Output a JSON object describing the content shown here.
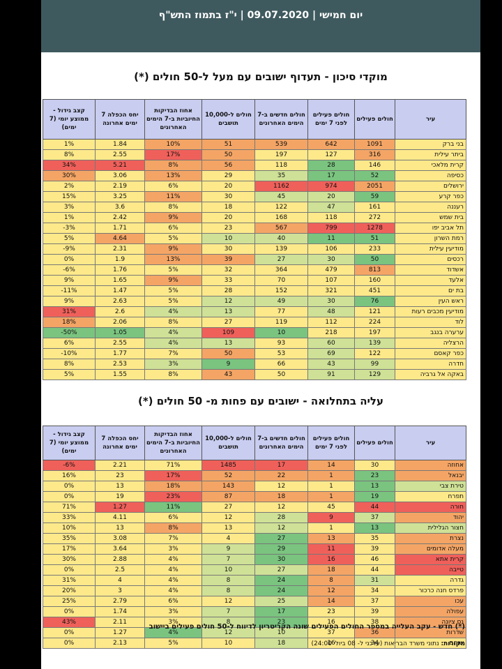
{
  "header": {
    "title": "יום חמישי | 09.07.2020 | י\"ז בתמוז התש\"ף"
  },
  "colors": {
    "header_bg": "#3f5a5f",
    "table_header_bg": "#c9cdf0",
    "scale": {
      "red": "#f0605a",
      "orange": "#f4a565",
      "yellow": "#fde98a",
      "lightgreen": "#cfe196",
      "green": "#7ac47f"
    }
  },
  "table1": {
    "title": "מוקדי סיכון -  תעדוף ישובים עם מעל ל-50 חולים (*)",
    "columns": [
      "עיר",
      "חולים פעילים",
      "חולים פעילים לפני 7 ימים",
      "חולים חדשים ב-7 הימים האחרונים",
      "חולים ל-10,000 תושבים",
      "אחוז הבדיקות החיוביות ב-7 הימים האחרונים",
      "יחס הכפלה 7 ימים אחרונה",
      "קצב גידול - ממוצע יומי (7 ימים)"
    ],
    "rows": [
      {
        "cells": [
          "בני ברק",
          "1091",
          "642",
          "539",
          "51",
          "10%",
          "1.84",
          "1%"
        ],
        "colors": [
          "#fde98a",
          "#f4a565",
          "#f4a565",
          "#f4a565",
          "#f4a565",
          "#f4a565",
          "#fde98a",
          "#fde98a"
        ]
      },
      {
        "cells": [
          "ביתר עילית",
          "316",
          "127",
          "197",
          "50",
          "17%",
          "2.55",
          "8%"
        ],
        "colors": [
          "#fde98a",
          "#f4a565",
          "#fde98a",
          "#fde98a",
          "#f4a565",
          "#f0605a",
          "#fde98a",
          "#fde98a"
        ]
      },
      {
        "cells": [
          "קרית מלאכי",
          "146",
          "28",
          "118",
          "56",
          "8%",
          "5.21",
          "34%"
        ],
        "colors": [
          "#fde98a",
          "#fde98a",
          "#7ac47f",
          "#fde98a",
          "#f4a565",
          "#f4a565",
          "#f0605a",
          "#f0605a"
        ]
      },
      {
        "cells": [
          "כסיפה",
          "52",
          "17",
          "35",
          "29",
          "13%",
          "3.06",
          "30%"
        ],
        "colors": [
          "#fde98a",
          "#7ac47f",
          "#7ac47f",
          "#cfe196",
          "#fde98a",
          "#f4a565",
          "#fde98a",
          "#f4a565"
        ]
      },
      {
        "cells": [
          "ירושלים",
          "2051",
          "974",
          "1162",
          "20",
          "6%",
          "2.19",
          "2%"
        ],
        "colors": [
          "#fde98a",
          "#f4a565",
          "#f0605a",
          "#f0605a",
          "#fde98a",
          "#fde98a",
          "#fde98a",
          "#fde98a"
        ]
      },
      {
        "cells": [
          "כפר קרע",
          "59",
          "20",
          "45",
          "30",
          "11%",
          "3.25",
          "15%"
        ],
        "colors": [
          "#fde98a",
          "#7ac47f",
          "#cfe196",
          "#cfe196",
          "#fde98a",
          "#f4a565",
          "#fde98a",
          "#fde98a"
        ]
      },
      {
        "cells": [
          "רעננה",
          "161",
          "47",
          "122",
          "18",
          "8%",
          "3.6",
          "3%"
        ],
        "colors": [
          "#fde98a",
          "#fde98a",
          "#cfe196",
          "#fde98a",
          "#fde98a",
          "#fde98a",
          "#fde98a",
          "#fde98a"
        ]
      },
      {
        "cells": [
          "בית שמש",
          "272",
          "118",
          "168",
          "20",
          "9%",
          "2.42",
          "1%"
        ],
        "colors": [
          "#fde98a",
          "#fde98a",
          "#fde98a",
          "#fde98a",
          "#fde98a",
          "#f4a565",
          "#fde98a",
          "#fde98a"
        ]
      },
      {
        "cells": [
          "תל אביב יפו",
          "1278",
          "799",
          "567",
          "23",
          "6%",
          "1.71",
          "-3%"
        ],
        "colors": [
          "#fde98a",
          "#f0605a",
          "#f0605a",
          "#f4a565",
          "#fde98a",
          "#fde98a",
          "#fde98a",
          "#fde98a"
        ]
      },
      {
        "cells": [
          "רמת השרון",
          "51",
          "11",
          "40",
          "10",
          "5%",
          "4.64",
          "5%"
        ],
        "colors": [
          "#fde98a",
          "#7ac47f",
          "#7ac47f",
          "#cfe196",
          "#cfe196",
          "#fde98a",
          "#f4a565",
          "#fde98a"
        ]
      },
      {
        "cells": [
          "מודיעין עילית",
          "233",
          "106",
          "139",
          "30",
          "9%",
          "2.31",
          "-9%"
        ],
        "colors": [
          "#fde98a",
          "#fde98a",
          "#fde98a",
          "#fde98a",
          "#fde98a",
          "#f4a565",
          "#fde98a",
          "#fde98a"
        ]
      },
      {
        "cells": [
          "רכסים",
          "50",
          "30",
          "27",
          "39",
          "13%",
          "1.9",
          "0%"
        ],
        "colors": [
          "#fde98a",
          "#7ac47f",
          "#cfe196",
          "#cfe196",
          "#f4a565",
          "#f4a565",
          "#fde98a",
          "#fde98a"
        ]
      },
      {
        "cells": [
          "אשדוד",
          "813",
          "479",
          "364",
          "32",
          "5%",
          "1.76",
          "-6%"
        ],
        "colors": [
          "#fde98a",
          "#f4a565",
          "#fde98a",
          "#fde98a",
          "#fde98a",
          "#fde98a",
          "#fde98a",
          "#fde98a"
        ]
      },
      {
        "cells": [
          "אלעד",
          "160",
          "107",
          "70",
          "33",
          "9%",
          "1.65",
          "9%"
        ],
        "colors": [
          "#fde98a",
          "#fde98a",
          "#fde98a",
          "#fde98a",
          "#fde98a",
          "#f4a565",
          "#fde98a",
          "#fde98a"
        ]
      },
      {
        "cells": [
          "בת ים",
          "451",
          "321",
          "152",
          "28",
          "5%",
          "1.47",
          "-11%"
        ],
        "colors": [
          "#fde98a",
          "#fde98a",
          "#fde98a",
          "#fde98a",
          "#fde98a",
          "#fde98a",
          "#fde98a",
          "#fde98a"
        ]
      },
      {
        "cells": [
          "ראש העין",
          "76",
          "30",
          "49",
          "12",
          "5%",
          "2.63",
          "9%"
        ],
        "colors": [
          "#fde98a",
          "#7ac47f",
          "#cfe196",
          "#cfe196",
          "#cfe196",
          "#fde98a",
          "#fde98a",
          "#fde98a"
        ]
      },
      {
        "cells": [
          "מודיעין מכבים רעות",
          "121",
          "48",
          "77",
          "13",
          "4%",
          "2.6",
          "31%"
        ],
        "colors": [
          "#fde98a",
          "#fde98a",
          "#cfe196",
          "#fde98a",
          "#cfe196",
          "#cfe196",
          "#fde98a",
          "#f0605a"
        ]
      },
      {
        "cells": [
          "לוד",
          "224",
          "112",
          "119",
          "27",
          "8%",
          "2.06",
          "18%"
        ],
        "colors": [
          "#fde98a",
          "#fde98a",
          "#fde98a",
          "#fde98a",
          "#fde98a",
          "#fde98a",
          "#fde98a",
          "#f4a565"
        ]
      },
      {
        "cells": [
          "ערערה בנגב",
          "197",
          "218",
          "10",
          "109",
          "4%",
          "1.05",
          "-50%"
        ],
        "colors": [
          "#fde98a",
          "#fde98a",
          "#fde98a",
          "#7ac47f",
          "#f0605a",
          "#cfe196",
          "#7ac47f",
          "#7ac47f"
        ]
      },
      {
        "cells": [
          "הרצליה",
          "139",
          "60",
          "93",
          "13",
          "4%",
          "2.55",
          "6%"
        ],
        "colors": [
          "#fde98a",
          "#cfe196",
          "#cfe196",
          "#fde98a",
          "#cfe196",
          "#cfe196",
          "#fde98a",
          "#fde98a"
        ]
      },
      {
        "cells": [
          "כפר קאסם",
          "122",
          "69",
          "53",
          "50",
          "7%",
          "1.77",
          "-10%"
        ],
        "colors": [
          "#fde98a",
          "#fde98a",
          "#cfe196",
          "#fde98a",
          "#f4a565",
          "#fde98a",
          "#fde98a",
          "#fde98a"
        ]
      },
      {
        "cells": [
          "חדרה",
          "99",
          "43",
          "66",
          "9",
          "3%",
          "2.53",
          "8%"
        ],
        "colors": [
          "#fde98a",
          "#cfe196",
          "#cfe196",
          "#fde98a",
          "#7ac47f",
          "#cfe196",
          "#fde98a",
          "#fde98a"
        ]
      },
      {
        "cells": [
          "באקה אל גרביה",
          "129",
          "91",
          "50",
          "43",
          "8%",
          "1.55",
          "5%"
        ],
        "colors": [
          "#fde98a",
          "#cfe196",
          "#cfe196",
          "#fde98a",
          "#f4a565",
          "#fde98a",
          "#fde98a",
          "#fde98a"
        ]
      }
    ]
  },
  "table2": {
    "title": "עליה בתחלואה - ישובים עם פחות מ- 50 חולים (*)",
    "columns": [
      "עיר",
      "חולים פעילים",
      "חולים פעילים לפני 7 ימים",
      "חולים חדשים ב-7 הימים האחרונים",
      "חולים ל-10,000 תושבים",
      "אחוז הבדיקות החיוביות ב-7 הימים האחרונים",
      "יחס הכפלה 7 ימים אחרונה",
      "קצב גידול - ממוצע יומי (7 ימים)"
    ],
    "rows": [
      {
        "cells": [
          "אחוזה",
          "30",
          "14",
          "17",
          "1485",
          "71%",
          "2.21",
          "-6%"
        ],
        "colors": [
          "#f4a565",
          "#fde98a",
          "#f4a565",
          "#f0605a",
          "#f0605a",
          "#fde98a",
          "#fde98a",
          "#f0605a"
        ]
      },
      {
        "cells": [
          "יבנאל",
          "23",
          "1",
          "22",
          "52",
          "17%",
          "23",
          "16%"
        ],
        "colors": [
          "#f4a565",
          "#7ac47f",
          "#f4a565",
          "#f4a565",
          "#f4a565",
          "#f0605a",
          "#fde98a",
          "#fde98a"
        ]
      },
      {
        "cells": [
          "טירת צבי",
          "13",
          "1",
          "12",
          "143",
          "18%",
          "13",
          "0%"
        ],
        "colors": [
          "#cfe196",
          "#7ac47f",
          "#fde98a",
          "#fde98a",
          "#f4a565",
          "#f4a565",
          "#fde98a",
          "#fde98a"
        ]
      },
      {
        "cells": [
          "תפרח",
          "19",
          "1",
          "18",
          "87",
          "23%",
          "19",
          "0%"
        ],
        "colors": [
          "#fde98a",
          "#7ac47f",
          "#f4a565",
          "#f4a565",
          "#f4a565",
          "#f0605a",
          "#fde98a",
          "#fde98a"
        ]
      },
      {
        "cells": [
          "חורה",
          "44",
          "45",
          "12",
          "27",
          "11%",
          "1.27",
          "71%"
        ],
        "colors": [
          "#f0605a",
          "#f0605a",
          "#fde98a",
          "#fde98a",
          "#fde98a",
          "#7ac47f",
          "#f0605a",
          "#fde98a"
        ]
      },
      {
        "cells": [
          "יהוד",
          "37",
          "9",
          "28",
          "12",
          "6%",
          "4.11",
          "33%"
        ],
        "colors": [
          "#f4a565",
          "#cfe196",
          "#f0605a",
          "#cfe196",
          "#fde98a",
          "#fde98a",
          "#fde98a",
          "#fde98a"
        ]
      },
      {
        "cells": [
          "חצור הגלילית",
          "13",
          "1",
          "12",
          "13",
          "8%",
          "13",
          "10%"
        ],
        "colors": [
          "#cfe196",
          "#7ac47f",
          "#fde98a",
          "#cfe196",
          "#fde98a",
          "#f4a565",
          "#fde98a",
          "#fde98a"
        ]
      },
      {
        "cells": [
          "נצרת",
          "35",
          "13",
          "27",
          "4",
          "7%",
          "3.08",
          "35%"
        ],
        "colors": [
          "#f4a565",
          "#fde98a",
          "#f4a565",
          "#7ac47f",
          "#fde98a",
          "#fde98a",
          "#fde98a",
          "#fde98a"
        ]
      },
      {
        "cells": [
          "מעלה אדומים",
          "39",
          "11",
          "29",
          "9",
          "3%",
          "3.64",
          "17%"
        ],
        "colors": [
          "#f4a565",
          "#fde98a",
          "#f0605a",
          "#7ac47f",
          "#cfe196",
          "#fde98a",
          "#fde98a",
          "#fde98a"
        ]
      },
      {
        "cells": [
          "קרית אתא",
          "46",
          "16",
          "30",
          "7",
          "4%",
          "2.88",
          "30%"
        ],
        "colors": [
          "#f0605a",
          "#fde98a",
          "#f0605a",
          "#7ac47f",
          "#cfe196",
          "#fde98a",
          "#fde98a",
          "#fde98a"
        ]
      },
      {
        "cells": [
          "טייבה",
          "44",
          "18",
          "27",
          "10",
          "4%",
          "2.5",
          "0%"
        ],
        "colors": [
          "#f0605a",
          "#fde98a",
          "#f4a565",
          "#cfe196",
          "#cfe196",
          "#fde98a",
          "#fde98a",
          "#fde98a"
        ]
      },
      {
        "cells": [
          "גדרה",
          "31",
          "8",
          "24",
          "8",
          "4%",
          "4",
          "31%"
        ],
        "colors": [
          "#fde98a",
          "#cfe196",
          "#f4a565",
          "#7ac47f",
          "#cfe196",
          "#fde98a",
          "#fde98a",
          "#fde98a"
        ]
      },
      {
        "cells": [
          "פרדס חנה כרכור",
          "34",
          "12",
          "24",
          "8",
          "4%",
          "3",
          "20%"
        ],
        "colors": [
          "#fde98a",
          "#fde98a",
          "#f4a565",
          "#7ac47f",
          "#cfe196",
          "#fde98a",
          "#fde98a",
          "#fde98a"
        ]
      },
      {
        "cells": [
          "עכו",
          "37",
          "14",
          "25",
          "12",
          "6%",
          "2.79",
          "25%"
        ],
        "colors": [
          "#f4a565",
          "#fde98a",
          "#f4a565",
          "#cfe196",
          "#fde98a",
          "#fde98a",
          "#fde98a",
          "#fde98a"
        ]
      },
      {
        "cells": [
          "עפולה",
          "39",
          "23",
          "17",
          "7",
          "3%",
          "1.74",
          "0%"
        ],
        "colors": [
          "#f4a565",
          "#fde98a",
          "#fde98a",
          "#7ac47f",
          "#cfe196",
          "#fde98a",
          "#fde98a",
          "#fde98a"
        ]
      },
      {
        "cells": [
          "נס ציונה",
          "38",
          "16",
          "23",
          "8",
          "3%",
          "2.11",
          "43%"
        ],
        "colors": [
          "#f4a565",
          "#fde98a",
          "#fde98a",
          "#7ac47f",
          "#cfe196",
          "#fde98a",
          "#fde98a",
          "#f0605a"
        ]
      },
      {
        "cells": [
          "שדרות",
          "36",
          "37",
          "10",
          "12",
          "4%",
          "1.27",
          "0%"
        ],
        "colors": [
          "#f4a565",
          "#f4a565",
          "#fde98a",
          "#cfe196",
          "#cfe196",
          "#7ac47f",
          "#fde98a",
          "#fde98a"
        ]
      },
      {
        "cells": [
          "שוהם",
          "34",
          "16",
          "18",
          "10",
          "5%",
          "2.13",
          "0%"
        ],
        "colors": [
          "#fde98a",
          "#fde98a",
          "#fde98a",
          "#cfe196",
          "#fde98a",
          "#fde98a",
          "#fde98a",
          "#fde98a"
        ]
      }
    ]
  },
  "footnote": "(*) חדש - עקב העלייה במספר החולים הפעילים שונה הקריטריון לדיווח ל-50 חולים פעילים ביישוב",
  "source_label": "מקורות:",
  "source_text": "נתוני משרד הבריאות (עדכני ל- 08 ביולי 24:00)"
}
